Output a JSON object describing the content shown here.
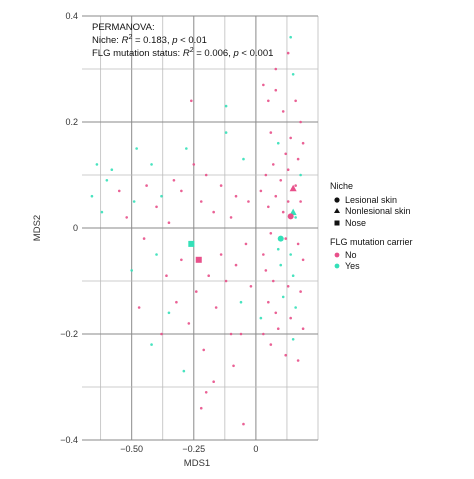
{
  "chart_data": {
    "type": "scatter",
    "xlabel": "MDS1",
    "ylabel": "MDS2",
    "xlim": [
      -0.7,
      0.25
    ],
    "ylim": [
      -0.4,
      0.4
    ],
    "x_ticks": [
      -0.5,
      -0.25,
      0
    ],
    "x_tick_labels": [
      "−0.50",
      "−0.25",
      "0"
    ],
    "y_ticks": [
      -0.4,
      -0.2,
      0,
      0.2,
      0.4
    ],
    "y_tick_labels": [
      "−0.4",
      "−0.2",
      "0",
      "0.2",
      "0.4"
    ],
    "grid": true,
    "annotation": {
      "line1": "PERMANOVA:",
      "line2_a": "Niche: ",
      "line2_r": "R",
      "line2_sup": "2",
      "line2_b": " = 0.183, ",
      "line2_p": "p",
      "line2_c": " < 0.01",
      "line3_a": "FLG mutation status: ",
      "line3_r": "R",
      "line3_sup": "2",
      "line3_b": " = 0.006, ",
      "line3_p": "p",
      "line3_c": " < 0.001"
    },
    "legend": {
      "placement": "right",
      "niche_title": "Niche",
      "niche_items": [
        {
          "label": "Lesional skin",
          "shape": "circle"
        },
        {
          "label": "Nonlesional skin",
          "shape": "triangle"
        },
        {
          "label": "Nose",
          "shape": "square"
        }
      ],
      "flg_title": "FLG mutation carrier",
      "flg_items": [
        {
          "label": "No",
          "color": "#e8508a"
        },
        {
          "label": "Yes",
          "color": "#34e0b8"
        }
      ]
    },
    "colors": {
      "No": "#e8508a",
      "Yes": "#34e0b8"
    },
    "centroids": [
      {
        "x": 0.15,
        "y": 0.075,
        "shape": "triangle",
        "group": "No"
      },
      {
        "x": 0.15,
        "y": 0.03,
        "shape": "triangle",
        "group": "Yes"
      },
      {
        "x": 0.14,
        "y": 0.022,
        "shape": "circle",
        "group": "No"
      },
      {
        "x": 0.1,
        "y": -0.02,
        "shape": "circle",
        "group": "Yes"
      },
      {
        "x": -0.23,
        "y": -0.06,
        "shape": "square",
        "group": "No"
      },
      {
        "x": -0.26,
        "y": -0.03,
        "shape": "square",
        "group": "Yes"
      }
    ],
    "points": [
      {
        "x": -0.64,
        "y": 0.12,
        "g": "Yes"
      },
      {
        "x": -0.66,
        "y": 0.06,
        "g": "Yes"
      },
      {
        "x": -0.6,
        "y": 0.09,
        "g": "Yes"
      },
      {
        "x": -0.58,
        "y": 0.11,
        "g": "Yes"
      },
      {
        "x": -0.55,
        "y": 0.07,
        "g": "No"
      },
      {
        "x": -0.62,
        "y": 0.03,
        "g": "Yes"
      },
      {
        "x": -0.52,
        "y": 0.02,
        "g": "No"
      },
      {
        "x": -0.49,
        "y": 0.05,
        "g": "Yes"
      },
      {
        "x": -0.48,
        "y": 0.15,
        "g": "Yes"
      },
      {
        "x": -0.44,
        "y": 0.08,
        "g": "No"
      },
      {
        "x": -0.42,
        "y": 0.12,
        "g": "Yes"
      },
      {
        "x": -0.4,
        "y": 0.04,
        "g": "No"
      },
      {
        "x": -0.38,
        "y": 0.06,
        "g": "Yes"
      },
      {
        "x": -0.35,
        "y": 0.01,
        "g": "No"
      },
      {
        "x": -0.33,
        "y": 0.09,
        "g": "No"
      },
      {
        "x": -0.3,
        "y": 0.07,
        "g": "No"
      },
      {
        "x": -0.28,
        "y": 0.15,
        "g": "Yes"
      },
      {
        "x": -0.25,
        "y": 0.12,
        "g": "No"
      },
      {
        "x": -0.22,
        "y": 0.05,
        "g": "No"
      },
      {
        "x": -0.2,
        "y": 0.1,
        "g": "No"
      },
      {
        "x": -0.17,
        "y": 0.03,
        "g": "No"
      },
      {
        "x": -0.14,
        "y": 0.08,
        "g": "No"
      },
      {
        "x": -0.12,
        "y": 0.18,
        "g": "Yes"
      },
      {
        "x": -0.1,
        "y": 0.02,
        "g": "No"
      },
      {
        "x": -0.08,
        "y": 0.06,
        "g": "No"
      },
      {
        "x": -0.05,
        "y": 0.13,
        "g": "Yes"
      },
      {
        "x": -0.03,
        "y": 0.05,
        "g": "No"
      },
      {
        "x": -0.45,
        "y": -0.02,
        "g": "No"
      },
      {
        "x": -0.4,
        "y": -0.05,
        "g": "Yes"
      },
      {
        "x": -0.36,
        "y": -0.09,
        "g": "No"
      },
      {
        "x": -0.32,
        "y": -0.14,
        "g": "No"
      },
      {
        "x": -0.3,
        "y": -0.06,
        "g": "No"
      },
      {
        "x": -0.27,
        "y": -0.18,
        "g": "No"
      },
      {
        "x": -0.24,
        "y": -0.12,
        "g": "No"
      },
      {
        "x": -0.21,
        "y": -0.23,
        "g": "No"
      },
      {
        "x": -0.19,
        "y": -0.09,
        "g": "No"
      },
      {
        "x": -0.16,
        "y": -0.15,
        "g": "No"
      },
      {
        "x": -0.14,
        "y": -0.05,
        "g": "No"
      },
      {
        "x": -0.12,
        "y": -0.1,
        "g": "No"
      },
      {
        "x": -0.1,
        "y": -0.2,
        "g": "No"
      },
      {
        "x": -0.08,
        "y": -0.07,
        "g": "No"
      },
      {
        "x": -0.06,
        "y": -0.14,
        "g": "Yes"
      },
      {
        "x": -0.04,
        "y": -0.03,
        "g": "No"
      },
      {
        "x": -0.02,
        "y": -0.11,
        "g": "No"
      },
      {
        "x": -0.35,
        "y": -0.16,
        "g": "Yes"
      },
      {
        "x": -0.38,
        "y": -0.2,
        "g": "No"
      },
      {
        "x": -0.29,
        "y": -0.27,
        "g": "Yes"
      },
      {
        "x": -0.2,
        "y": -0.31,
        "g": "No"
      },
      {
        "x": -0.17,
        "y": -0.29,
        "g": "No"
      },
      {
        "x": -0.09,
        "y": -0.26,
        "g": "No"
      },
      {
        "x": -0.22,
        "y": -0.34,
        "g": "No"
      },
      {
        "x": -0.5,
        "y": -0.08,
        "g": "Yes"
      },
      {
        "x": -0.47,
        "y": -0.15,
        "g": "No"
      },
      {
        "x": -0.42,
        "y": -0.22,
        "g": "Yes"
      },
      {
        "x": -0.12,
        "y": 0.23,
        "g": "Yes"
      },
      {
        "x": -0.26,
        "y": 0.24,
        "g": "No"
      },
      {
        "x": -0.05,
        "y": -0.37,
        "g": "No"
      },
      {
        "x": 0.14,
        "y": 0.36,
        "g": "Yes"
      },
      {
        "x": 0.15,
        "y": 0.29,
        "g": "Yes"
      },
      {
        "x": 0.13,
        "y": 0.33,
        "g": "No"
      },
      {
        "x": 0.03,
        "y": 0.27,
        "g": "No"
      },
      {
        "x": 0.05,
        "y": 0.24,
        "g": "No"
      },
      {
        "x": 0.08,
        "y": 0.26,
        "g": "No"
      },
      {
        "x": 0.11,
        "y": 0.22,
        "g": "No"
      },
      {
        "x": 0.16,
        "y": 0.24,
        "g": "No"
      },
      {
        "x": 0.18,
        "y": 0.2,
        "g": "No"
      },
      {
        "x": 0.06,
        "y": 0.18,
        "g": "No"
      },
      {
        "x": 0.09,
        "y": 0.16,
        "g": "Yes"
      },
      {
        "x": 0.12,
        "y": 0.14,
        "g": "No"
      },
      {
        "x": 0.14,
        "y": 0.17,
        "g": "No"
      },
      {
        "x": 0.17,
        "y": 0.13,
        "g": "No"
      },
      {
        "x": 0.19,
        "y": 0.16,
        "g": "No"
      },
      {
        "x": 0.04,
        "y": 0.1,
        "g": "No"
      },
      {
        "x": 0.07,
        "y": 0.12,
        "g": "No"
      },
      {
        "x": 0.1,
        "y": 0.09,
        "g": "No"
      },
      {
        "x": 0.13,
        "y": 0.11,
        "g": "No"
      },
      {
        "x": 0.16,
        "y": 0.08,
        "g": "No"
      },
      {
        "x": 0.18,
        "y": 0.1,
        "g": "Yes"
      },
      {
        "x": 0.05,
        "y": 0.04,
        "g": "No"
      },
      {
        "x": 0.08,
        "y": 0.06,
        "g": "No"
      },
      {
        "x": 0.11,
        "y": 0.03,
        "g": "No"
      },
      {
        "x": 0.13,
        "y": 0.05,
        "g": "No"
      },
      {
        "x": 0.16,
        "y": 0.02,
        "g": "Yes"
      },
      {
        "x": 0.18,
        "y": 0.05,
        "g": "No"
      },
      {
        "x": 0.06,
        "y": -0.01,
        "g": "No"
      },
      {
        "x": 0.09,
        "y": -0.04,
        "g": "Yes"
      },
      {
        "x": 0.12,
        "y": -0.02,
        "g": "No"
      },
      {
        "x": 0.14,
        "y": -0.05,
        "g": "Yes"
      },
      {
        "x": 0.17,
        "y": -0.03,
        "g": "No"
      },
      {
        "x": 0.19,
        "y": -0.06,
        "g": "No"
      },
      {
        "x": 0.04,
        "y": -0.08,
        "g": "No"
      },
      {
        "x": 0.07,
        "y": -0.1,
        "g": "No"
      },
      {
        "x": 0.1,
        "y": -0.07,
        "g": "Yes"
      },
      {
        "x": 0.13,
        "y": -0.11,
        "g": "No"
      },
      {
        "x": 0.15,
        "y": -0.09,
        "g": "Yes"
      },
      {
        "x": 0.18,
        "y": -0.12,
        "g": "No"
      },
      {
        "x": 0.05,
        "y": -0.14,
        "g": "No"
      },
      {
        "x": 0.08,
        "y": -0.16,
        "g": "No"
      },
      {
        "x": 0.11,
        "y": -0.13,
        "g": "Yes"
      },
      {
        "x": 0.14,
        "y": -0.17,
        "g": "No"
      },
      {
        "x": 0.16,
        "y": -0.15,
        "g": "Yes"
      },
      {
        "x": 0.19,
        "y": -0.19,
        "g": "No"
      },
      {
        "x": 0.03,
        "y": -0.2,
        "g": "No"
      },
      {
        "x": 0.06,
        "y": -0.22,
        "g": "No"
      },
      {
        "x": 0.09,
        "y": -0.19,
        "g": "No"
      },
      {
        "x": 0.12,
        "y": -0.24,
        "g": "No"
      },
      {
        "x": 0.15,
        "y": -0.21,
        "g": "Yes"
      },
      {
        "x": 0.17,
        "y": -0.25,
        "g": "No"
      },
      {
        "x": 0.08,
        "y": 0.3,
        "g": "No"
      },
      {
        "x": 0.02,
        "y": 0.07,
        "g": "No"
      },
      {
        "x": 0.03,
        "y": -0.05,
        "g": "No"
      },
      {
        "x": 0.02,
        "y": -0.17,
        "g": "Yes"
      },
      {
        "x": -0.06,
        "y": -0.2,
        "g": "No"
      }
    ]
  }
}
